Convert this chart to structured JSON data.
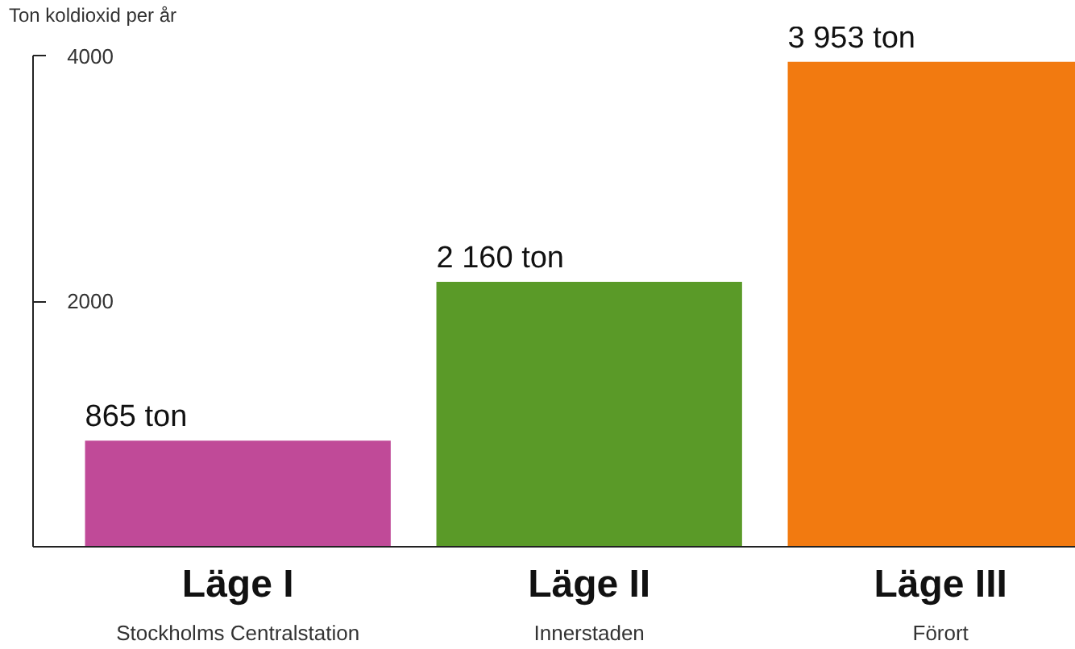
{
  "chart_data": {
    "type": "bar",
    "ylabel": "Ton koldioxid per år",
    "categories": [
      "Läge I\nStockholms Centralstation",
      "Läge II\nInnerstaden",
      "Läge III\nFörort"
    ],
    "values": [
      865,
      2160,
      3953
    ],
    "colors": [
      "#c04a98",
      "#5a9a28",
      "#f27a10"
    ],
    "value_labels": [
      "865 ton",
      "2 160 ton",
      "3 953 ton"
    ],
    "ylim": [
      0,
      4000
    ],
    "yticks": [
      2000,
      4000
    ],
    "grid": false
  }
}
